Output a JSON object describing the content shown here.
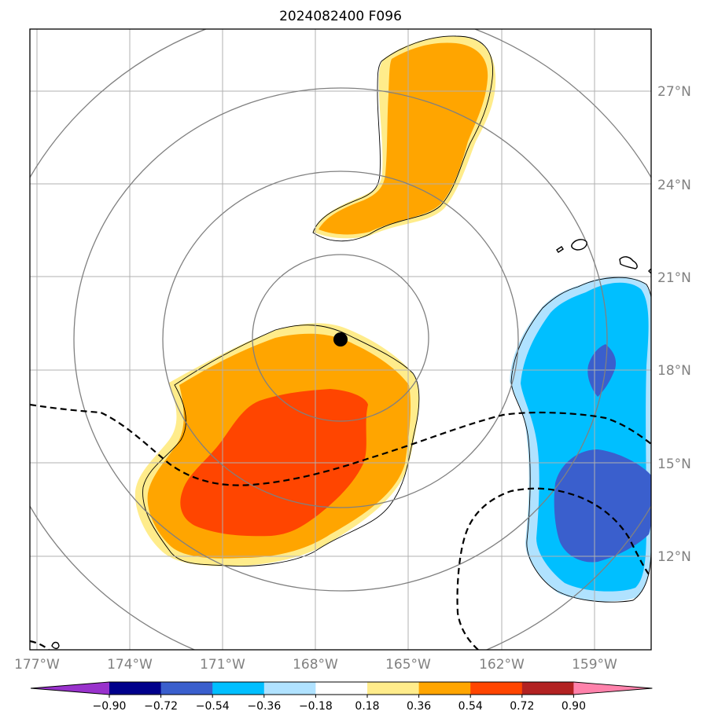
{
  "title": "2024082400 F096",
  "map": {
    "lon_labels": [
      "177°W",
      "174°W",
      "171°W",
      "168°W",
      "165°W",
      "162°W",
      "159°W"
    ],
    "lat_labels": [
      "27°N",
      "24°N",
      "21°N",
      "18°N",
      "15°N",
      "12°N"
    ],
    "grid": true,
    "center_marker": {
      "lon": -167.3,
      "lat": 18.95
    },
    "range_rings": 4
  },
  "colorbar": {
    "tick_labels": [
      "−0.90",
      "−0.72",
      "−0.54",
      "−0.36",
      "−0.18",
      "0.18",
      "0.36",
      "0.54",
      "0.72",
      "0.90"
    ],
    "colors": [
      "#9932cc",
      "#00008b",
      "#3a5fcd",
      "#00bfff",
      "#b0e2ff",
      "#ffffff",
      "#ffec8b",
      "#ffa500",
      "#ff4500",
      "#b22222",
      "#ff82ab"
    ],
    "extend": "both"
  },
  "anomaly_fields": [
    {
      "region": "northern-positive",
      "levels": [
        "0.18-0.36",
        "0.36-0.54"
      ]
    },
    {
      "region": "southwest-positive",
      "levels": [
        "0.18-0.36",
        "0.36-0.54",
        "0.54-0.72"
      ]
    },
    {
      "region": "east-negative",
      "levels": [
        "-0.18--0.36",
        "-0.36--0.54",
        "-0.54--0.72"
      ]
    }
  ],
  "line_styles": {
    "dashed_contours": "black",
    "range_rings": "#808080"
  }
}
